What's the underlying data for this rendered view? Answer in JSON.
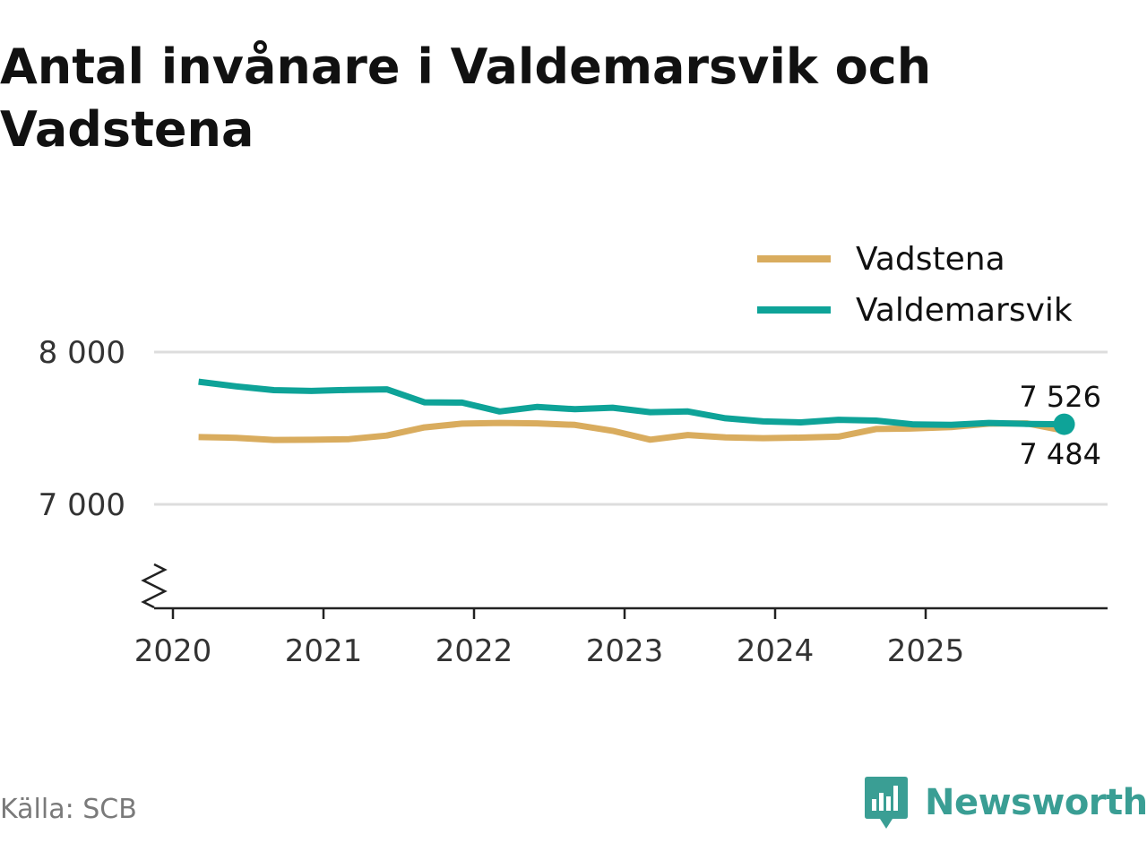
{
  "title": "Antal invånare i Valdemarsvik och Vadstena",
  "source": "Källa: SCB",
  "brand": {
    "name": "Newsworthy",
    "color": "#3a9e94"
  },
  "chart_data": {
    "type": "line",
    "title": "Antal invånare i Valdemarsvik och Vadstena",
    "xlabel": "",
    "ylabel": "",
    "xlim": [
      2020.0,
      2026.0
    ],
    "ylim": [
      6700,
      8130
    ],
    "y_ticks": [
      7000,
      8000
    ],
    "y_tick_labels": [
      "7 000",
      "8 000"
    ],
    "x_ticks": [
      2020,
      2021,
      2022,
      2023,
      2024,
      2025
    ],
    "x_tick_labels": [
      "2020",
      "2021",
      "2022",
      "2023",
      "2024",
      "2025"
    ],
    "grid": true,
    "axis_break": true,
    "legend_position": "top-right",
    "x": [
      2020.17,
      2020.42,
      2020.67,
      2020.92,
      2021.17,
      2021.42,
      2021.67,
      2021.92,
      2022.17,
      2022.42,
      2022.67,
      2022.92,
      2023.17,
      2023.42,
      2023.67,
      2023.92,
      2024.17,
      2024.42,
      2024.67,
      2024.92,
      2025.17,
      2025.42,
      2025.67,
      2025.92
    ],
    "series": [
      {
        "name": "Vadstena",
        "color": "#d9ac5e",
        "values": [
          7442,
          7437,
          7423,
          7424,
          7428,
          7452,
          7505,
          7530,
          7535,
          7532,
          7522,
          7483,
          7425,
          7455,
          7440,
          7435,
          7438,
          7445,
          7495,
          7498,
          7507,
          7530,
          7532,
          7484
        ],
        "end_label": "7 484"
      },
      {
        "name": "Valdemarsvik",
        "color": "#0ea398",
        "values": [
          7805,
          7775,
          7750,
          7745,
          7752,
          7755,
          7670,
          7668,
          7610,
          7640,
          7625,
          7635,
          7605,
          7610,
          7565,
          7545,
          7538,
          7555,
          7550,
          7525,
          7522,
          7535,
          7528,
          7526
        ],
        "end_label": "7 526"
      }
    ]
  }
}
